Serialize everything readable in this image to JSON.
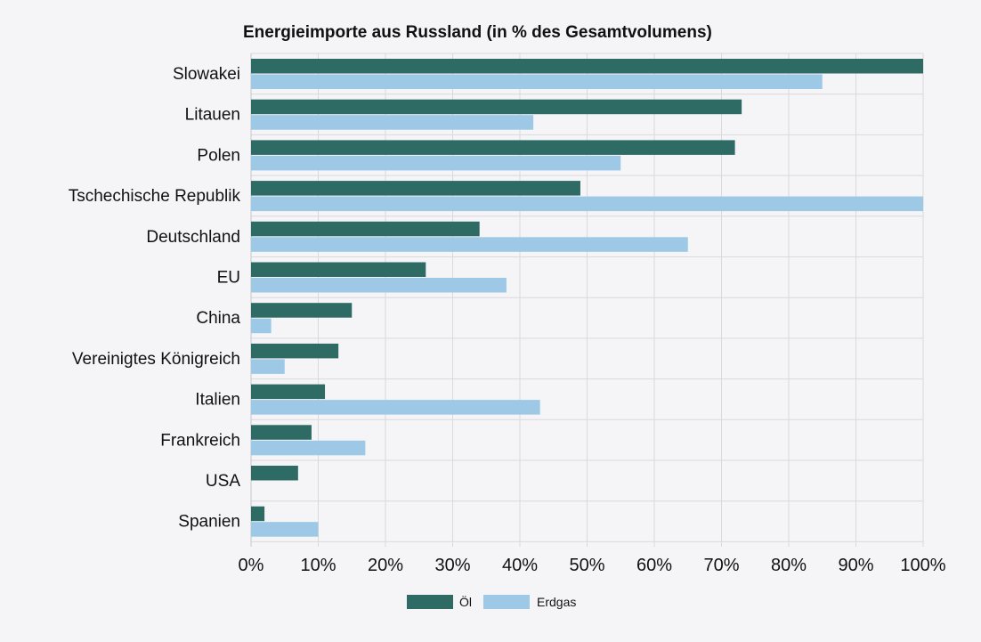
{
  "chart_data": {
    "type": "bar",
    "orientation": "horizontal",
    "title": "Energieimporte aus Russland (in % des Gesamtvolumens)",
    "xlabel": "",
    "ylabel": "",
    "categories": [
      "Slowakei",
      "Litauen",
      "Polen",
      "Tschechische Republik",
      "Deutschland",
      "EU",
      "China",
      "Vereinigtes Königreich",
      "Italien",
      "Frankreich",
      "USA",
      "Spanien"
    ],
    "series": [
      {
        "name": "Öl",
        "color": "#2e6b65",
        "values": [
          100,
          73,
          72,
          49,
          34,
          26,
          15,
          13,
          11,
          9,
          7,
          2
        ]
      },
      {
        "name": "Erdgas",
        "color": "#9dc8e6",
        "values": [
          85,
          42,
          55,
          100,
          65,
          38,
          3,
          5,
          43,
          17,
          0,
          10
        ]
      }
    ],
    "xlim": [
      0,
      100
    ],
    "xticks": [
      "0%",
      "10%",
      "20%",
      "30%",
      "40%",
      "50%",
      "60%",
      "70%",
      "80%",
      "90%",
      "100%"
    ],
    "grid": true,
    "legend_position": "bottom"
  }
}
